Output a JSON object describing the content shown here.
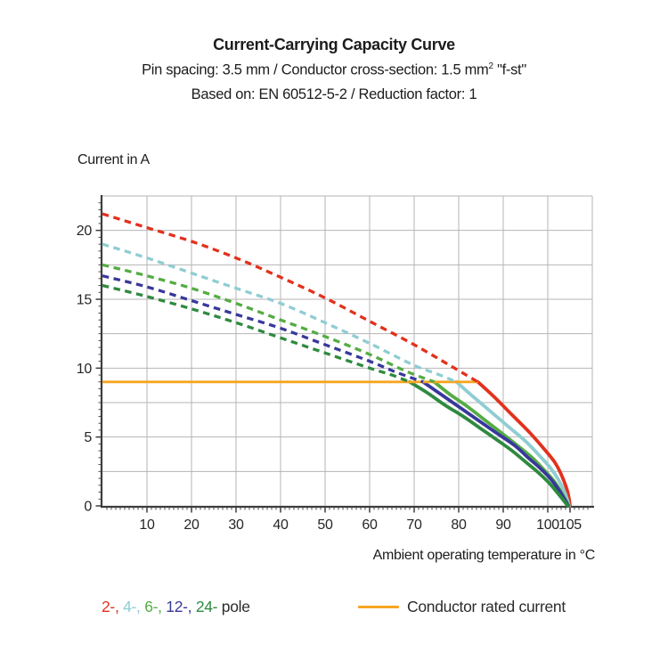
{
  "header": {
    "title": "Current-Carrying Capacity Curve",
    "subtitle1": {
      "pre": "Pin spacing: 3.5 mm / Conductor cross-section: 1.5 mm",
      "sup": "2",
      "post": " \"f-st\""
    },
    "subtitle2": "Based on: EN 60512-5-2 / Reduction factor: 1"
  },
  "chart_data": {
    "type": "line",
    "title": "Current-Carrying Capacity Curve",
    "xlabel": "Ambient operating temperature in °C",
    "ylabel": "Current in A",
    "xlim": [
      0,
      110
    ],
    "ylim": [
      0,
      22.5
    ],
    "grid": "on",
    "grid_color": "#b5b5b5",
    "axis_color": "#3d3d3d",
    "x_major_ticks": [
      10,
      20,
      30,
      40,
      50,
      60,
      70,
      80,
      90,
      100,
      105
    ],
    "x_tick_labels": [
      "10",
      "20",
      "30",
      "40",
      "50",
      "60",
      "70",
      "80",
      "90",
      "100",
      "105"
    ],
    "x_minor_step": 1,
    "x_grid_step": 10,
    "y_major_ticks": [
      0,
      5,
      10,
      15,
      20
    ],
    "y_tick_labels": [
      "0",
      "5",
      "10",
      "15",
      "20"
    ],
    "y_minor_step": 0.5,
    "y_grid_step": 2.5,
    "series": [
      {
        "name": "2-pole",
        "color": "#e2311d",
        "dashed": [
          [
            0,
            21.2
          ],
          [
            10,
            20.2
          ],
          [
            20,
            19.2
          ],
          [
            30,
            18.0
          ],
          [
            40,
            16.6
          ],
          [
            50,
            15.1
          ],
          [
            60,
            13.4
          ],
          [
            70,
            11.7
          ],
          [
            78,
            10.2
          ],
          [
            84.3,
            9.0
          ]
        ],
        "solid": [
          [
            84.3,
            9.0
          ],
          [
            88,
            7.9
          ],
          [
            92,
            6.6
          ],
          [
            96,
            5.3
          ],
          [
            99,
            4.2
          ],
          [
            101.5,
            3.2
          ],
          [
            103,
            2.3
          ],
          [
            104.3,
            1.2
          ],
          [
            104.8,
            0.5
          ],
          [
            105.0,
            0
          ]
        ]
      },
      {
        "name": "4-pole",
        "color": "#8fcdd2",
        "dashed": [
          [
            0,
            19.0
          ],
          [
            10,
            18.0
          ],
          [
            20,
            16.9
          ],
          [
            30,
            15.8
          ],
          [
            40,
            14.7
          ],
          [
            50,
            13.3
          ],
          [
            60,
            11.8
          ],
          [
            70,
            10.2
          ],
          [
            75,
            9.6
          ],
          [
            79.5,
            9.0
          ]
        ],
        "solid": [
          [
            79.5,
            9.0
          ],
          [
            83,
            8.0
          ],
          [
            87,
            6.9
          ],
          [
            91,
            5.8
          ],
          [
            95,
            4.7
          ],
          [
            98,
            3.7
          ],
          [
            100.5,
            2.8
          ],
          [
            102.4,
            1.9
          ],
          [
            103.9,
            0.9
          ],
          [
            104.8,
            0
          ]
        ]
      },
      {
        "name": "6-pole",
        "color": "#54ac43",
        "dashed": [
          [
            0,
            17.5
          ],
          [
            10,
            16.7
          ],
          [
            20,
            15.8
          ],
          [
            30,
            14.7
          ],
          [
            40,
            13.5
          ],
          [
            50,
            12.3
          ],
          [
            60,
            11.0
          ],
          [
            68,
            9.8
          ],
          [
            74.5,
            9.0
          ]
        ],
        "solid": [
          [
            74.5,
            9.0
          ],
          [
            78,
            8.1
          ],
          [
            82,
            7.2
          ],
          [
            86,
            6.2
          ],
          [
            90,
            5.2
          ],
          [
            93.5,
            4.3
          ],
          [
            96.5,
            3.5
          ],
          [
            99.2,
            2.6
          ],
          [
            101.4,
            1.8
          ],
          [
            103.2,
            0.9
          ],
          [
            104.7,
            0
          ]
        ]
      },
      {
        "name": "12-pole",
        "color": "#38389b",
        "dashed": [
          [
            0,
            16.7
          ],
          [
            10,
            15.9
          ],
          [
            20,
            14.9
          ],
          [
            30,
            13.9
          ],
          [
            40,
            12.9
          ],
          [
            50,
            11.7
          ],
          [
            60,
            10.5
          ],
          [
            66,
            9.7
          ],
          [
            72,
            9.0
          ]
        ],
        "solid": [
          [
            72,
            9.0
          ],
          [
            76,
            8.1
          ],
          [
            80,
            7.2
          ],
          [
            84,
            6.3
          ],
          [
            88,
            5.4
          ],
          [
            92.5,
            4.4
          ],
          [
            95.6,
            3.5
          ],
          [
            98.4,
            2.7
          ],
          [
            100.8,
            1.9
          ],
          [
            102.8,
            1.0
          ],
          [
            104.6,
            0
          ]
        ]
      },
      {
        "name": "24-pole",
        "color": "#2e8a3e",
        "dashed": [
          [
            0,
            16.0
          ],
          [
            10,
            15.2
          ],
          [
            20,
            14.3
          ],
          [
            30,
            13.3
          ],
          [
            40,
            12.2
          ],
          [
            50,
            11.1
          ],
          [
            60,
            10.0
          ],
          [
            65,
            9.5
          ],
          [
            69,
            9.0
          ]
        ],
        "solid": [
          [
            69,
            9.0
          ],
          [
            73,
            8.2
          ],
          [
            77,
            7.3
          ],
          [
            81,
            6.5
          ],
          [
            85,
            5.6
          ],
          [
            89,
            4.7
          ],
          [
            92,
            4.0
          ],
          [
            95,
            3.2
          ],
          [
            97.6,
            2.5
          ],
          [
            100.2,
            1.7
          ],
          [
            102.3,
            0.9
          ],
          [
            104.5,
            0
          ]
        ]
      }
    ],
    "rated_current": {
      "name": "Conductor rated current",
      "color": "#f7a520",
      "value": 9,
      "points": [
        [
          0,
          9
        ],
        [
          84.3,
          9
        ]
      ]
    }
  },
  "labels": {
    "y_axis_title": "Current in A",
    "x_axis_title": "Ambient operating temperature in °C"
  },
  "legend": {
    "poles": [
      {
        "label": "2-",
        "color": "#e2311d"
      },
      {
        "label": "4-",
        "color": "#8fcdd2"
      },
      {
        "label": "6-",
        "color": "#54ac43"
      },
      {
        "label": "12-",
        "color": "#38389b"
      },
      {
        "label": "24-",
        "color": "#2e8a3e"
      }
    ],
    "pole_suffix": " pole",
    "rated": {
      "label": "Conductor rated current",
      "color": "#f7a520"
    }
  }
}
